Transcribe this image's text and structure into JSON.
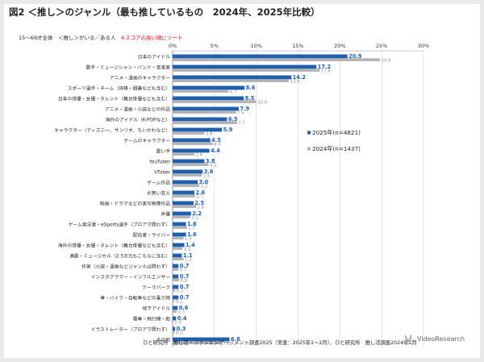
{
  "page": {
    "title": "図2 ＜推し＞のジャンル（最も推しているもの　2024年、2025年比較）",
    "subtitle": "15～69才全体　＜推し＞がいる／ある人",
    "note": "※スコアの高い順にソート",
    "source": "ひと研究所　推し活・ファンエンゲージメント調査2025（実査：2025年1～2月）、ひと研究所　推し活調査2024年2月",
    "logo_text": "VideoResearch"
  },
  "chart_data": {
    "type": "bar",
    "orientation": "horizontal",
    "xlim": [
      0,
      30
    ],
    "ticks": [
      "0%",
      "5%",
      "10%",
      "15%",
      "20%",
      "25%",
      "30%"
    ],
    "grid": true,
    "legend_position": "right",
    "categories": [
      "日本のアイドル",
      "歌手・ミュージシャン・バンド・音楽家",
      "アニメ・漫画のキャラクター",
      "スポーツ選手・チーム（将棋・囲碁なども含む）",
      "日本の俳優・女優・タレント（舞台俳優なども含む）",
      "アニメ・漫画・小説などの作品",
      "海外のアイドル（K-POPなど）",
      "キャラクター（ディズニー、サンリオ、ちいかわなど）",
      "ゲームのキャラクター",
      "歌い手",
      "YouTuber",
      "VTuber",
      "ゲーム作品",
      "お笑い芸人",
      "映画・ドラマなどの実写映像作品",
      "声優",
      "ゲーム実況者・eSports選手（プロアマ問わず）",
      "配信者・ライバー",
      "海外の俳優・女優・タレント（舞台俳優なども含む）",
      "演劇・ミュージカル（2.5次元もこちらに含む）",
      "作家（小説・漫画などジャンルは問わず）",
      "インスタグラマー・インフルエンサー",
      "テーマパーク",
      "車・バイク・自転車などの乗り物",
      "地下アイドル",
      "電車・飛行機・船",
      "イラストレーター（プロアマ問わず）",
      "その他"
    ],
    "series": [
      {
        "name": "2025年(n=4821)",
        "color": "#1f5fb0",
        "values": [
          20.9,
          17.2,
          14.2,
          8.6,
          8.5,
          7.9,
          6.5,
          5.9,
          4.5,
          4.4,
          3.8,
          3.6,
          3.0,
          2.6,
          2.5,
          2.2,
          1.6,
          1.6,
          1.4,
          1.1,
          0.7,
          0.7,
          0.7,
          0.7,
          0.6,
          0.4,
          0.3,
          6.8
        ],
        "labels": [
          "20.9",
          "17.2",
          "14.2",
          "8.6",
          "8.5",
          "7.9",
          "6.5",
          "5.9",
          "4.5",
          "4.4",
          "3.8",
          "3.6",
          "3.0",
          "2.6",
          "2.5",
          "2.2",
          "1.6",
          "1.6",
          "1.4",
          "1.1",
          "0.7",
          "0.7",
          "0.7",
          "0.7",
          "0.6",
          "0.4",
          "0.3",
          "6.8"
        ]
      },
      {
        "name": "2024年(n=1437)",
        "color": "#b3b3b3",
        "values": [
          24.8,
          17.6,
          13.9,
          6.7,
          10.0,
          7.6,
          7.7,
          3.8,
          4.8,
          2.6,
          4.3,
          3.5,
          3.2,
          2.7,
          2.8,
          2.1,
          1.7,
          1.3,
          1.2,
          1.3,
          0.7,
          0.8,
          0.3,
          0.2,
          0.5,
          0.1,
          0.2,
          5.8
        ],
        "labels": [
          "24.8",
          "17.6",
          "13.9",
          "6.7",
          "10.0",
          "7.6",
          "7.7",
          "3.8",
          "4.8",
          "2.6",
          "4.3",
          "3.5",
          "3.2",
          "2.7",
          "2.8",
          "2.1",
          "1.7",
          "1.3",
          "1.2",
          "1.3",
          "0.7",
          "0.8",
          "0.3",
          "0.2",
          "0.5",
          "0.1",
          "0.2",
          "5.8"
        ]
      }
    ]
  }
}
